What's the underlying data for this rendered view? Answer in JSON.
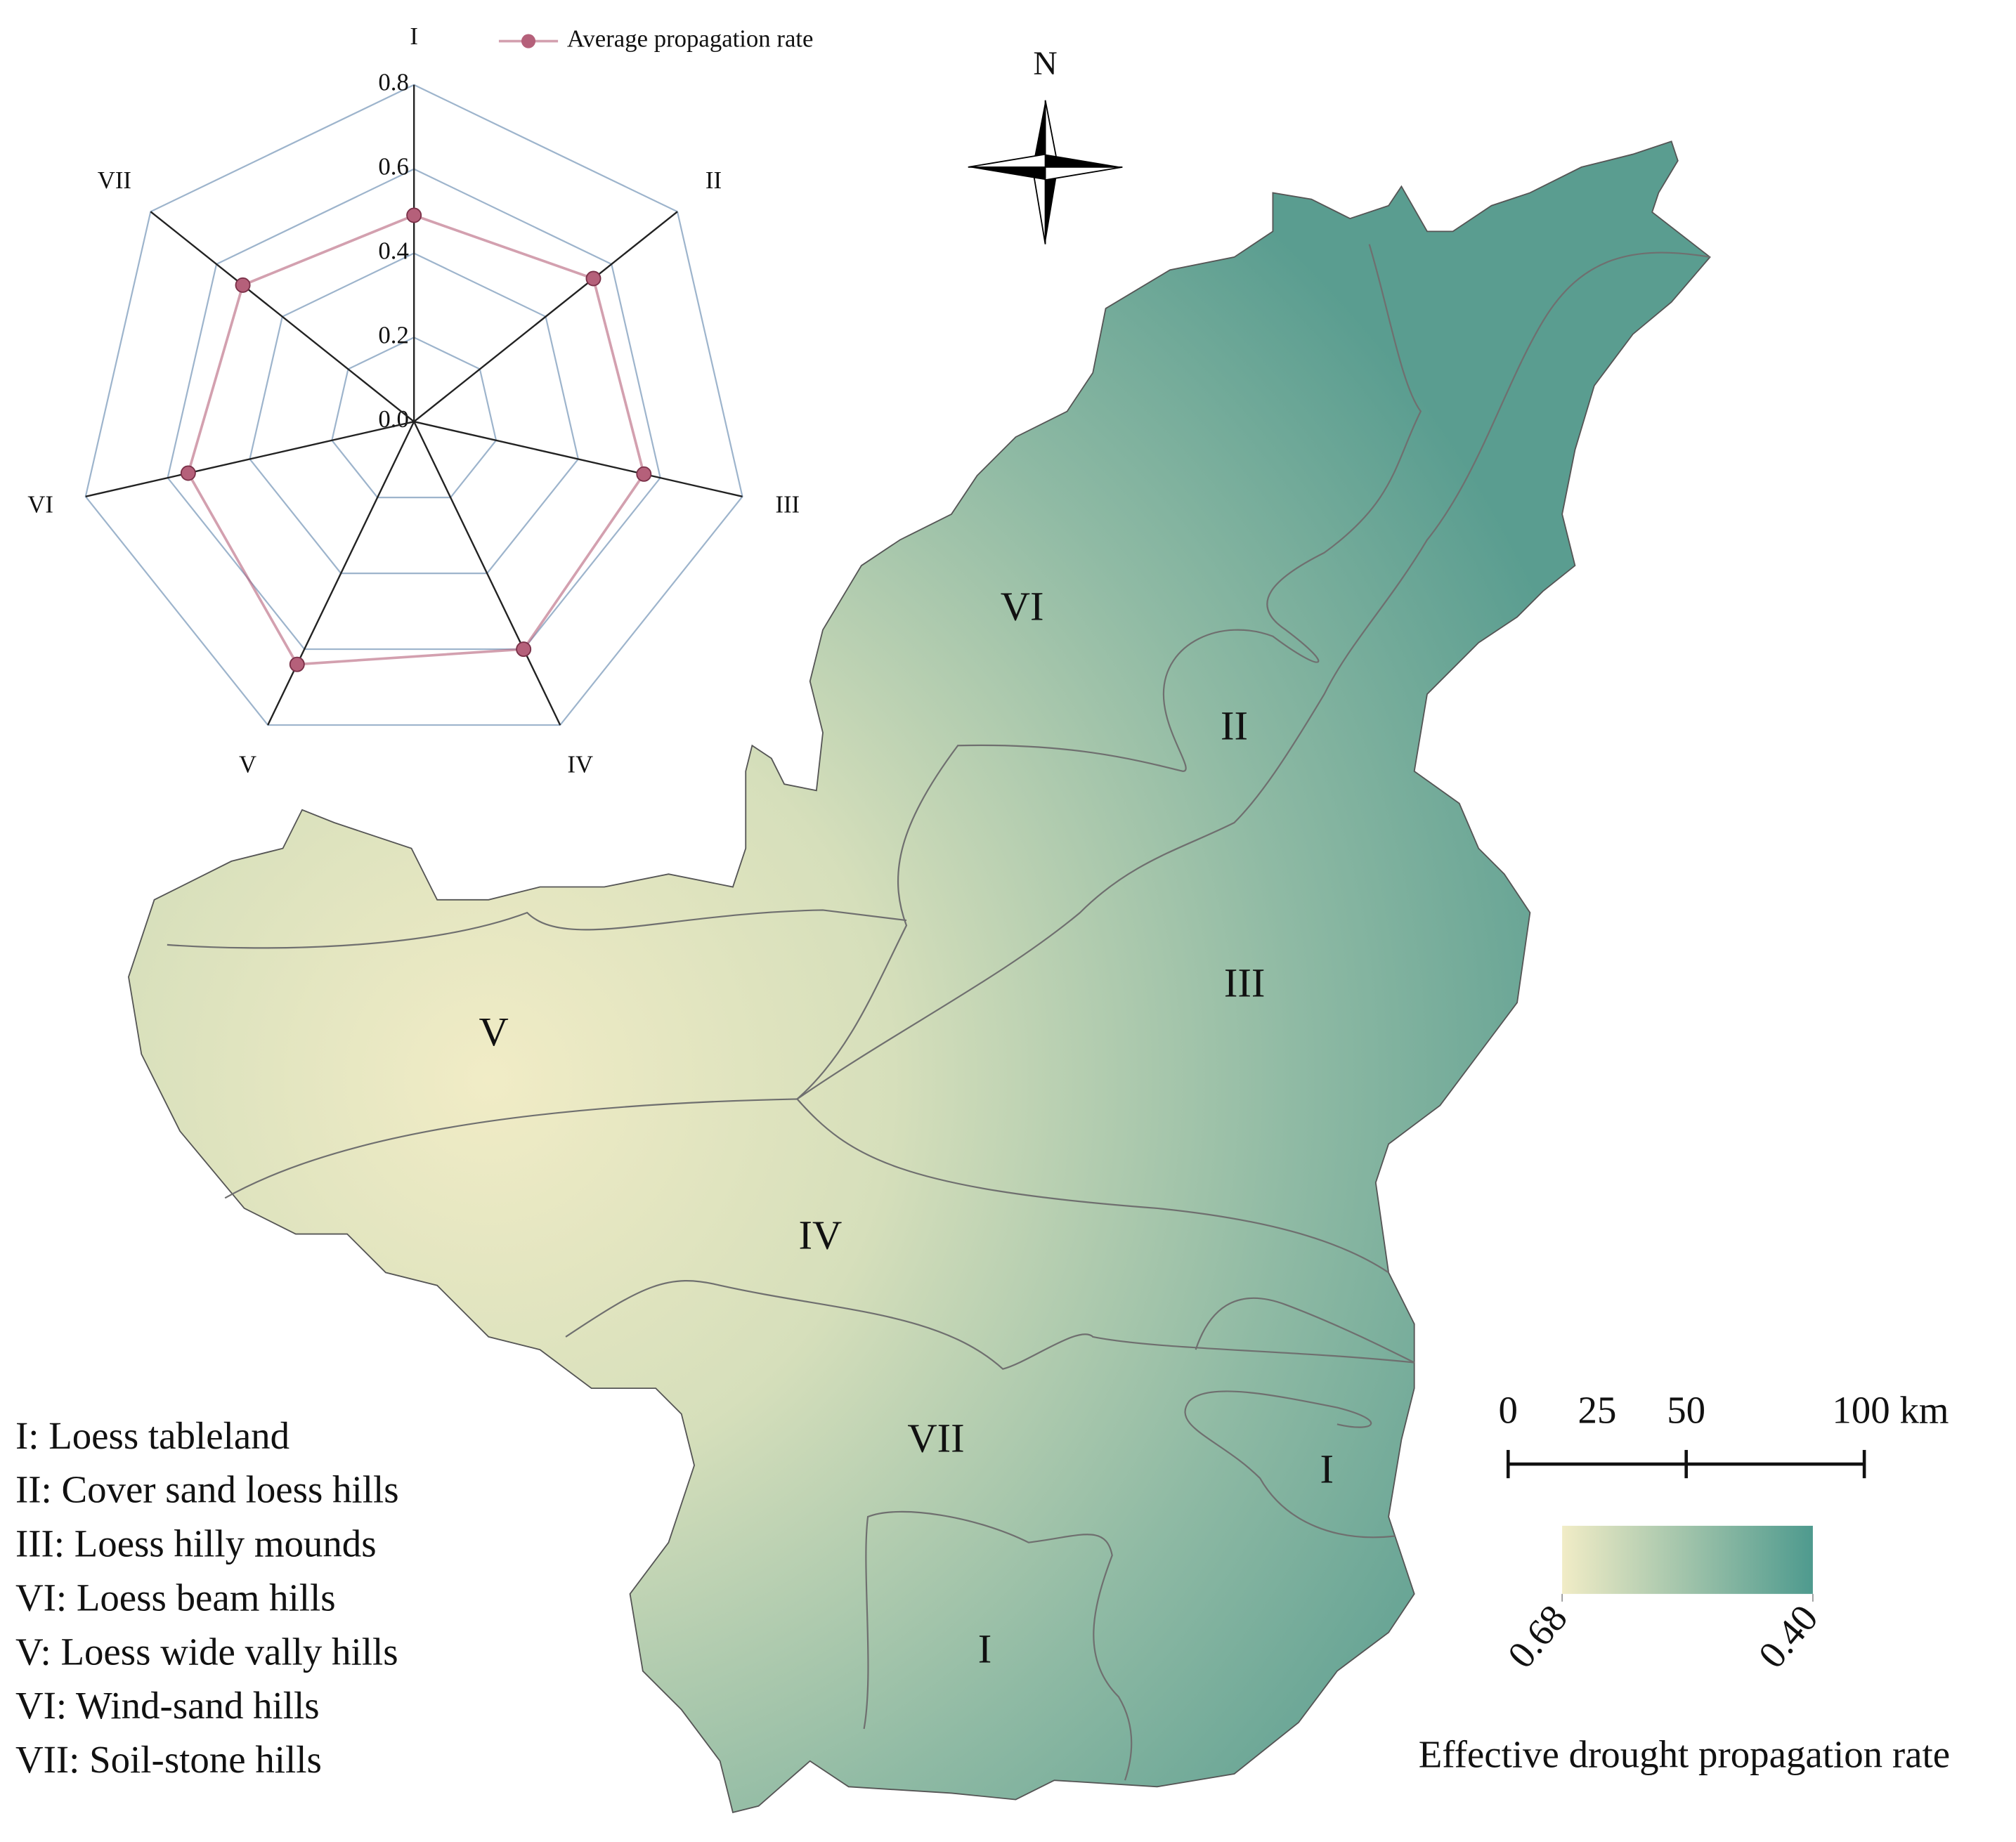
{
  "chart_data": {
    "type": "radar",
    "categories": [
      "I",
      "II",
      "III",
      "IV",
      "V",
      "VI",
      "VII"
    ],
    "series": [
      {
        "name": "Average propagation rate",
        "color": "#b5607a",
        "values": [
          0.49,
          0.545,
          0.56,
          0.6,
          0.64,
          0.55,
          0.52
        ]
      }
    ],
    "rlim": [
      0,
      0.8
    ],
    "rticks": [
      {
        "value": 0,
        "label": "0.0"
      },
      0.2,
      0.4,
      0.6,
      0.8
    ],
    "grid": true
  },
  "map": {
    "region_labels": [
      "VI",
      "II",
      "III",
      "V",
      "IV",
      "VII",
      "I",
      "I"
    ],
    "legend_items": [
      "I: Loess tableland",
      "II: Cover sand loess hills",
      "III: Loess hilly mounds",
      "VI: Loess beam hills",
      "V: Loess wide vally hills",
      "VI: Wind-sand hills",
      "VII: Soil-stone hills"
    ],
    "north": "N",
    "scale_bar": {
      "ticks": [
        0,
        25,
        50,
        {
          "value": 100,
          "label": "100 km"
        }
      ]
    },
    "colorbar": {
      "title": "Effective drought propagation rate",
      "clim": [
        0.68,
        0.4
      ],
      "ticks": [
        0.68,
        {
          "value": 0.4,
          "label": "0.40"
        }
      ],
      "colors": [
        "#f1ecc6",
        "#4e9a8e"
      ]
    }
  }
}
